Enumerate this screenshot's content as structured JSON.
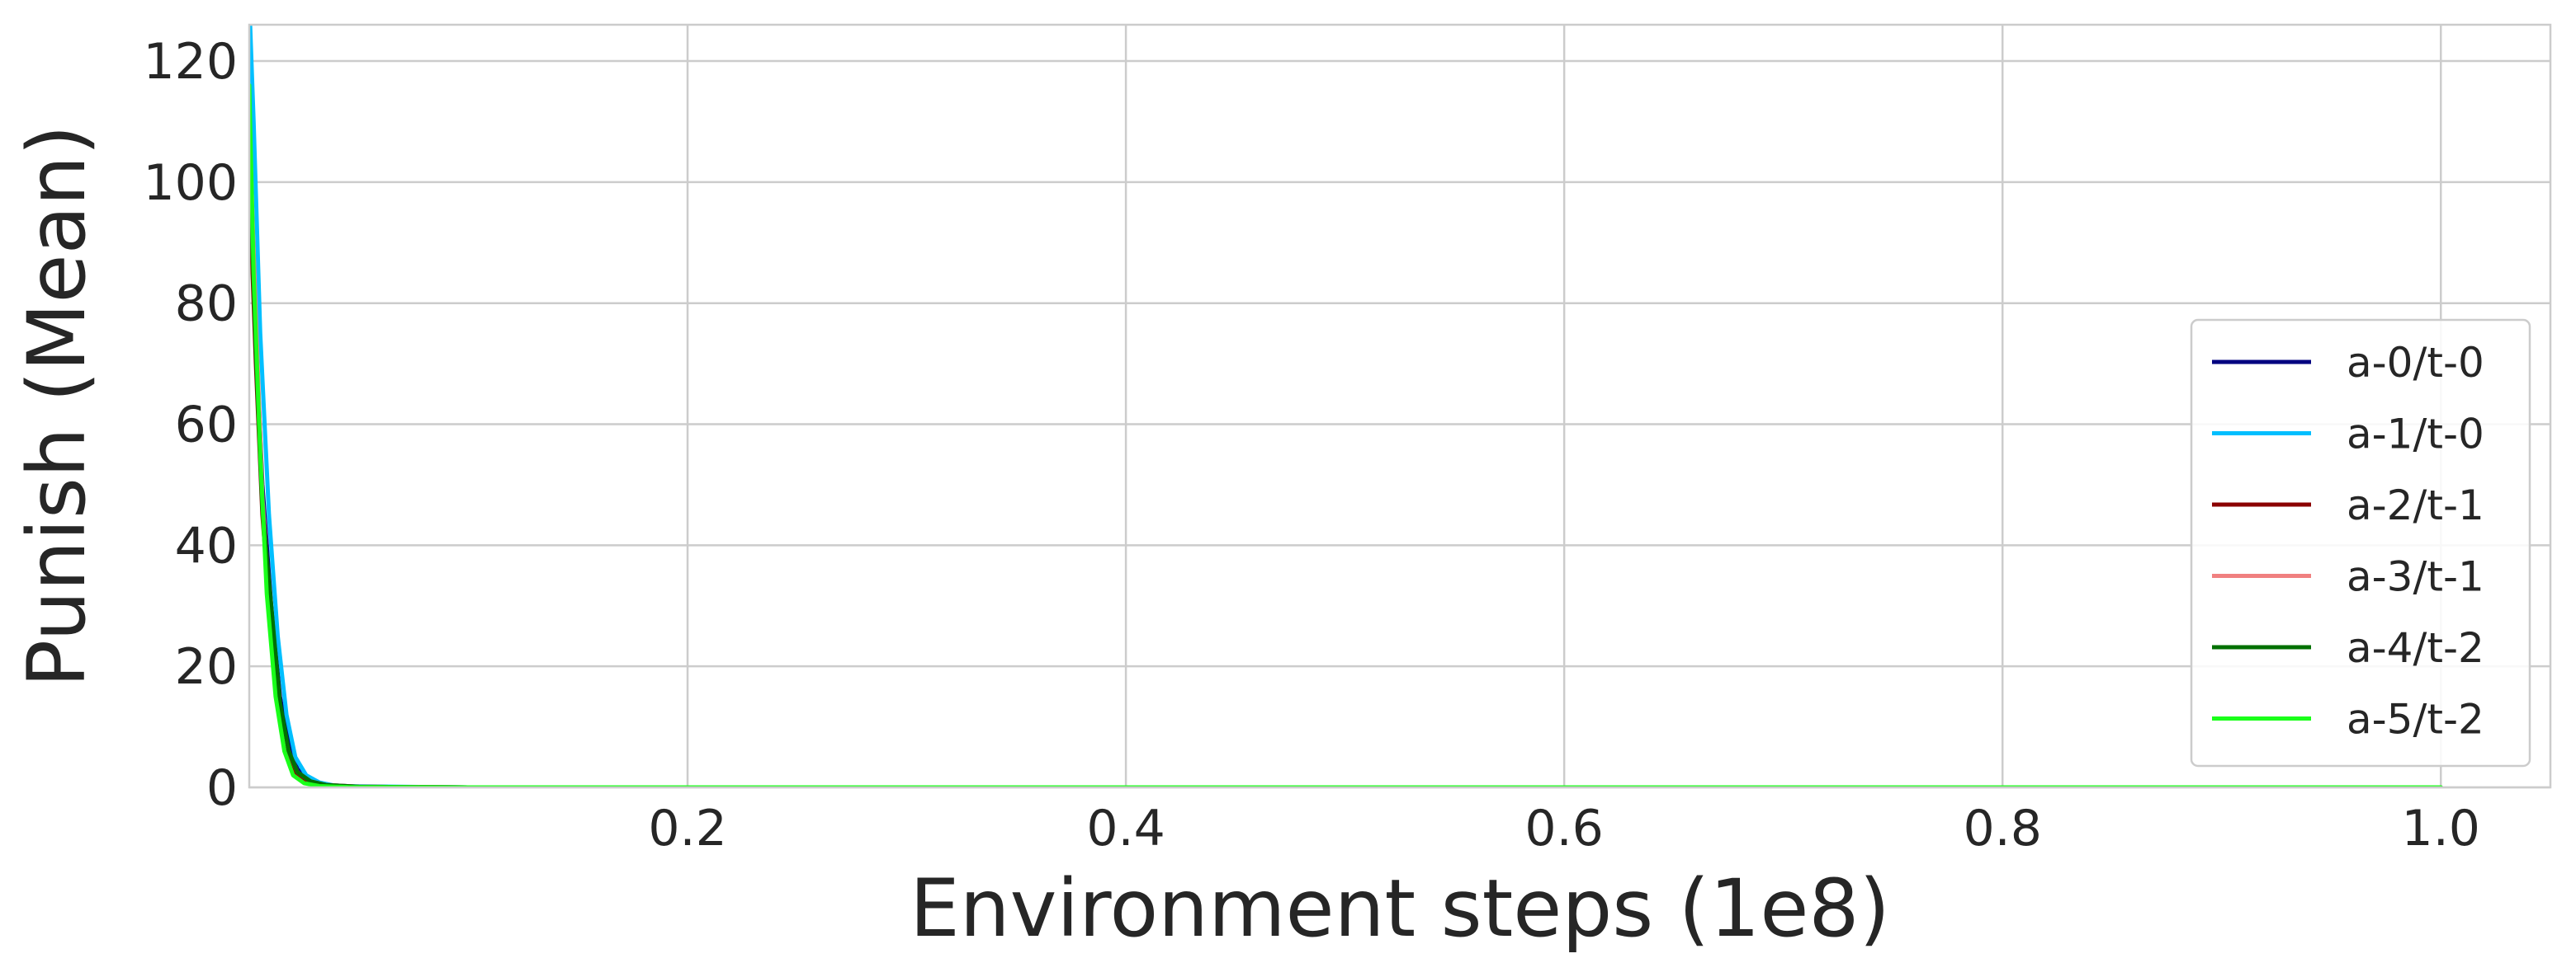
{
  "chart_data": {
    "type": "line",
    "title": "",
    "xlabel": "Environment steps (1e8)",
    "ylabel": "Punish (Mean)",
    "xlim": [
      0,
      1.05
    ],
    "ylim": [
      0,
      126
    ],
    "x_ticks": [
      0.2,
      0.4,
      0.6,
      0.8,
      1.0
    ],
    "x_tick_labels": [
      "0.2",
      "0.4",
      "0.6",
      "0.8",
      "1.0"
    ],
    "y_ticks": [
      0,
      20,
      40,
      60,
      80,
      100,
      120
    ],
    "y_tick_labels": [
      "0",
      "20",
      "40",
      "60",
      "80",
      "100",
      "120"
    ],
    "grid": true,
    "legend_position": "lower-right",
    "series": [
      {
        "name": "a-0/t-0",
        "color": "#000080",
        "x": [
          0.0,
          0.003,
          0.006,
          0.01,
          0.014,
          0.018,
          0.022,
          0.028,
          0.035,
          0.05,
          0.1,
          0.3,
          0.5,
          0.7,
          0.9,
          1.0
        ],
        "y": [
          108,
          75,
          50,
          30,
          15,
          7,
          3,
          1,
          0.4,
          0.1,
          0,
          0,
          0,
          0,
          0,
          0
        ]
      },
      {
        "name": "a-1/t-0",
        "color": "#00bfff",
        "x": [
          0.0,
          0.002,
          0.005,
          0.009,
          0.013,
          0.017,
          0.021,
          0.026,
          0.032,
          0.04,
          0.1,
          0.3,
          0.5,
          0.7,
          0.9,
          1.0
        ],
        "y": [
          130,
          110,
          75,
          45,
          25,
          12,
          5,
          2,
          0.8,
          0.2,
          0,
          0,
          0,
          0,
          0,
          0
        ]
      },
      {
        "name": "a-2/t-1",
        "color": "#8b0000",
        "x": [
          0.0,
          0.003,
          0.006,
          0.01,
          0.014,
          0.018,
          0.022,
          0.028,
          0.035,
          0.05,
          0.1,
          0.3,
          0.5,
          0.7,
          0.9,
          1.0
        ],
        "y": [
          100,
          70,
          45,
          26,
          12,
          5,
          2,
          0.8,
          0.3,
          0.1,
          0,
          0,
          0,
          0,
          0,
          0
        ]
      },
      {
        "name": "a-3/t-1",
        "color": "#f08080",
        "x": [
          0.0,
          0.003,
          0.006,
          0.01,
          0.014,
          0.018,
          0.022,
          0.028,
          0.035,
          0.05,
          0.1,
          0.3,
          0.5,
          0.7,
          0.9,
          1.0
        ],
        "y": [
          110,
          78,
          48,
          27,
          13,
          6,
          2.5,
          1,
          0.4,
          0.1,
          0,
          0,
          0,
          0,
          0,
          0
        ]
      },
      {
        "name": "a-4/t-2",
        "color": "#007000",
        "x": [
          0.0,
          0.003,
          0.006,
          0.01,
          0.014,
          0.018,
          0.022,
          0.028,
          0.035,
          0.05,
          0.1,
          0.3,
          0.5,
          0.7,
          0.9,
          1.0
        ],
        "y": [
          105,
          72,
          46,
          30,
          14,
          6,
          2.5,
          1,
          0.4,
          0.1,
          0,
          0,
          0,
          0,
          0,
          0
        ]
      },
      {
        "name": "a-5/t-2",
        "color": "#1aff1a",
        "x": [
          0.0,
          0.002,
          0.005,
          0.008,
          0.012,
          0.016,
          0.02,
          0.025,
          0.032,
          0.045,
          0.1,
          0.3,
          0.5,
          0.7,
          0.9,
          1.0
        ],
        "y": [
          116,
          85,
          55,
          32,
          15,
          6,
          2,
          0.7,
          0.2,
          0.05,
          0,
          0,
          0,
          0,
          0,
          0
        ]
      }
    ]
  }
}
